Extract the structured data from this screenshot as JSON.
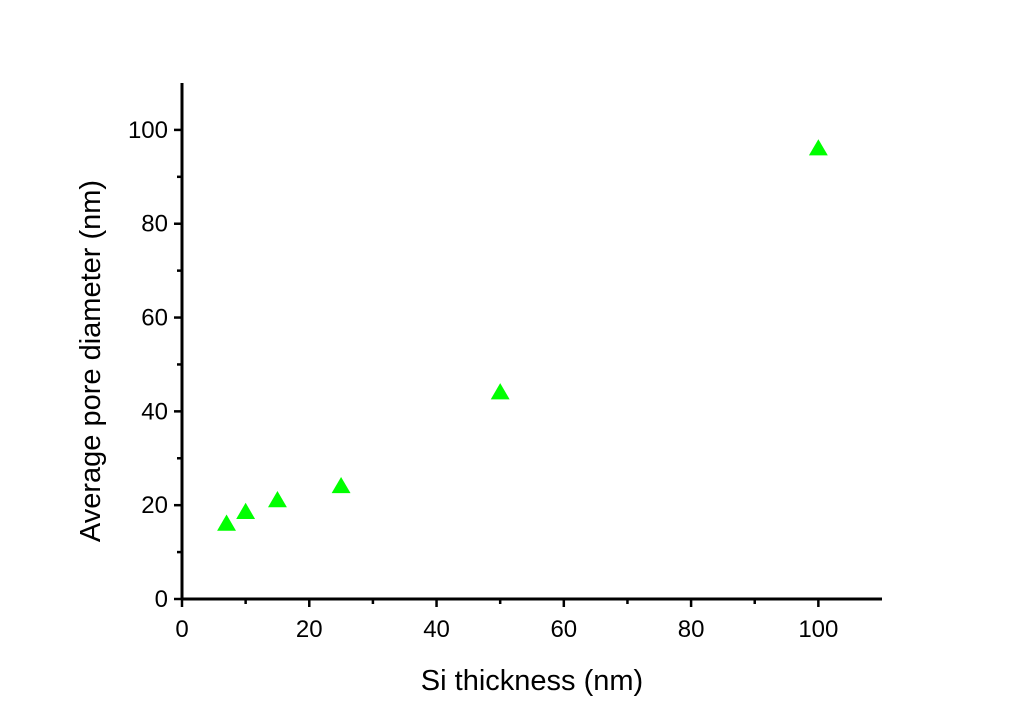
{
  "chart_data": {
    "type": "scatter",
    "title": "",
    "xlabel": "Si thickness (nm)",
    "ylabel": "Average pore diameter (nm)",
    "xlim": [
      0,
      110
    ],
    "ylim": [
      0,
      110
    ],
    "x_ticks": [
      "0",
      "20",
      "40",
      "60",
      "80",
      "100"
    ],
    "y_ticks": [
      "0",
      "20",
      "40",
      "60",
      "80",
      "100"
    ],
    "grid": false,
    "marker": "triangle",
    "series": [
      {
        "color": "#00ff00",
        "x": [
          7,
          10,
          15,
          25,
          50,
          100
        ],
        "y": [
          16,
          18.5,
          21,
          24,
          44,
          96
        ]
      }
    ]
  }
}
